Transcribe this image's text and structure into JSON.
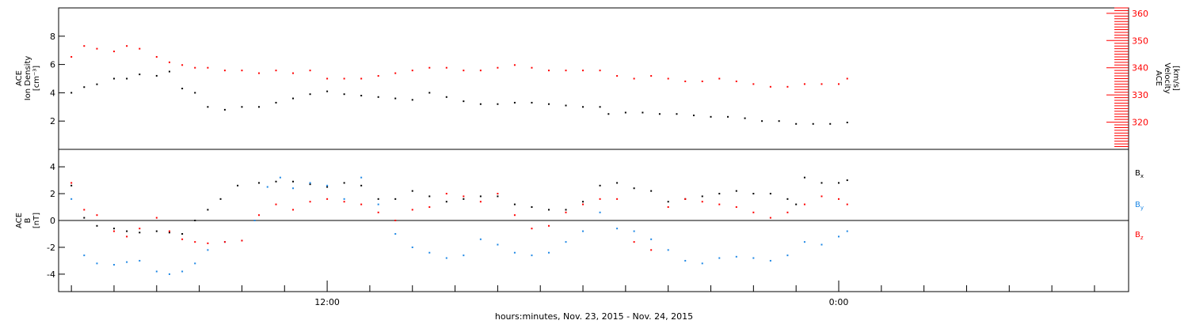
{
  "xlabel": "hours:minutes, Nov. 23, 2015 - Nov. 24, 2015",
  "chart_data": [
    {
      "type": "scatter",
      "panel": "top",
      "xlim": [
        5.7,
        30.8
      ],
      "x_tick_labels": [
        {
          "x": 12,
          "label": "12:00"
        },
        {
          "x": 24,
          "label": "0:00"
        }
      ],
      "left_axis": {
        "label_lines": [
          "ACE",
          "Ion Density",
          "[cm⁻³]"
        ],
        "ylim": [
          0,
          10
        ],
        "ticks": [
          2,
          4,
          6,
          8
        ],
        "color": "#000000"
      },
      "right_axis": {
        "label_lines": [
          "ACE",
          "Velocity",
          "[km/s]"
        ],
        "ylim": [
          310,
          362
        ],
        "ticks": [
          320,
          330,
          340,
          350,
          360
        ],
        "color": "#ff0000"
      },
      "series": [
        {
          "axis": "left",
          "color": "#000000",
          "points": [
            [
              6.0,
              4.0
            ],
            [
              6.3,
              4.4
            ],
            [
              6.6,
              4.6
            ],
            [
              7.0,
              5.0
            ],
            [
              7.3,
              5.0
            ],
            [
              7.6,
              5.3
            ],
            [
              8.0,
              5.2
            ],
            [
              8.3,
              5.5
            ],
            [
              8.6,
              4.3
            ],
            [
              8.9,
              4.0
            ],
            [
              9.2,
              3.0
            ],
            [
              9.6,
              2.8
            ],
            [
              10.0,
              3.0
            ],
            [
              10.4,
              3.0
            ],
            [
              10.8,
              3.3
            ],
            [
              11.2,
              3.6
            ],
            [
              11.6,
              3.9
            ],
            [
              12.0,
              4.1
            ],
            [
              12.4,
              3.9
            ],
            [
              12.8,
              3.8
            ],
            [
              13.2,
              3.7
            ],
            [
              13.6,
              3.6
            ],
            [
              14.0,
              3.5
            ],
            [
              14.4,
              4.0
            ],
            [
              14.8,
              3.7
            ],
            [
              15.2,
              3.4
            ],
            [
              15.6,
              3.2
            ],
            [
              16.0,
              3.2
            ],
            [
              16.4,
              3.3
            ],
            [
              16.8,
              3.3
            ],
            [
              17.2,
              3.2
            ],
            [
              17.6,
              3.1
            ],
            [
              18.0,
              3.0
            ],
            [
              18.4,
              3.0
            ],
            [
              18.6,
              2.5
            ],
            [
              19.0,
              2.6
            ],
            [
              19.4,
              2.6
            ],
            [
              19.8,
              2.5
            ],
            [
              20.2,
              2.5
            ],
            [
              20.6,
              2.4
            ],
            [
              21.0,
              2.3
            ],
            [
              21.4,
              2.3
            ],
            [
              21.8,
              2.2
            ],
            [
              22.2,
              2.0
            ],
            [
              22.6,
              2.0
            ],
            [
              23.0,
              1.8
            ],
            [
              23.4,
              1.8
            ],
            [
              23.8,
              1.8
            ],
            [
              24.2,
              1.9
            ]
          ]
        },
        {
          "axis": "right",
          "color": "#ff0000",
          "points": [
            [
              6.0,
              344
            ],
            [
              6.3,
              348
            ],
            [
              6.6,
              347
            ],
            [
              7.0,
              346
            ],
            [
              7.3,
              348
            ],
            [
              7.6,
              347
            ],
            [
              8.0,
              344
            ],
            [
              8.3,
              342
            ],
            [
              8.6,
              341
            ],
            [
              8.9,
              340
            ],
            [
              9.2,
              340
            ],
            [
              9.6,
              339
            ],
            [
              10.0,
              339
            ],
            [
              10.4,
              338
            ],
            [
              10.8,
              339
            ],
            [
              11.2,
              338
            ],
            [
              11.6,
              339
            ],
            [
              12.0,
              336
            ],
            [
              12.4,
              336
            ],
            [
              12.8,
              336
            ],
            [
              13.2,
              337
            ],
            [
              13.6,
              338
            ],
            [
              14.0,
              339
            ],
            [
              14.4,
              340
            ],
            [
              14.8,
              340
            ],
            [
              15.2,
              339
            ],
            [
              15.6,
              339
            ],
            [
              16.0,
              340
            ],
            [
              16.4,
              341
            ],
            [
              16.8,
              340
            ],
            [
              17.2,
              339
            ],
            [
              17.6,
              339
            ],
            [
              18.0,
              339
            ],
            [
              18.4,
              339
            ],
            [
              18.8,
              337
            ],
            [
              19.2,
              336
            ],
            [
              19.6,
              337
            ],
            [
              20.0,
              336
            ],
            [
              20.4,
              335
            ],
            [
              20.8,
              335
            ],
            [
              21.2,
              336
            ],
            [
              21.6,
              335
            ],
            [
              22.0,
              334
            ],
            [
              22.4,
              333
            ],
            [
              22.8,
              333
            ],
            [
              23.2,
              334
            ],
            [
              23.6,
              334
            ],
            [
              24.0,
              334
            ],
            [
              24.2,
              336
            ]
          ]
        }
      ]
    },
    {
      "type": "scatter",
      "panel": "bottom",
      "xlim": [
        5.7,
        30.8
      ],
      "x_tick_labels": [
        {
          "x": 12,
          "label": "12:00"
        },
        {
          "x": 24,
          "label": "0:00"
        }
      ],
      "left_axis": {
        "label_lines": [
          "ACE",
          "B",
          "[nT]"
        ],
        "ylim": [
          -5.3,
          5.3
        ],
        "ticks": [
          -4,
          -2,
          0,
          2,
          4
        ],
        "color": "#000000"
      },
      "series": [
        {
          "name": "Bx",
          "color": "#000000",
          "points": [
            [
              6.0,
              2.6
            ],
            [
              6.3,
              0.2
            ],
            [
              6.6,
              -0.4
            ],
            [
              7.0,
              -0.6
            ],
            [
              7.3,
              -0.8
            ],
            [
              7.6,
              -0.9
            ],
            [
              8.0,
              -0.8
            ],
            [
              8.3,
              -0.9
            ],
            [
              8.6,
              -1.0
            ],
            [
              8.9,
              0.0
            ],
            [
              9.2,
              0.8
            ],
            [
              9.5,
              1.6
            ],
            [
              9.9,
              2.6
            ],
            [
              10.4,
              2.8
            ],
            [
              10.8,
              2.9
            ],
            [
              11.2,
              2.9
            ],
            [
              11.6,
              2.7
            ],
            [
              12.0,
              2.5
            ],
            [
              12.4,
              2.8
            ],
            [
              12.8,
              2.6
            ],
            [
              13.2,
              1.6
            ],
            [
              13.6,
              1.6
            ],
            [
              14.0,
              2.2
            ],
            [
              14.4,
              1.8
            ],
            [
              14.8,
              1.4
            ],
            [
              15.2,
              1.6
            ],
            [
              15.6,
              1.8
            ],
            [
              16.0,
              1.8
            ],
            [
              16.4,
              1.2
            ],
            [
              16.8,
              1.0
            ],
            [
              17.2,
              0.8
            ],
            [
              17.6,
              0.8
            ],
            [
              18.0,
              1.4
            ],
            [
              18.4,
              2.6
            ],
            [
              18.8,
              2.8
            ],
            [
              19.2,
              2.4
            ],
            [
              19.6,
              2.2
            ],
            [
              20.0,
              1.4
            ],
            [
              20.4,
              1.6
            ],
            [
              20.8,
              1.8
            ],
            [
              21.2,
              2.0
            ],
            [
              21.6,
              2.2
            ],
            [
              22.0,
              2.0
            ],
            [
              22.4,
              2.0
            ],
            [
              22.8,
              1.6
            ],
            [
              23.0,
              1.2
            ],
            [
              23.2,
              3.2
            ],
            [
              23.6,
              2.8
            ],
            [
              24.0,
              2.8
            ],
            [
              24.2,
              3.0
            ]
          ]
        },
        {
          "name": "By",
          "color": "#1e88e5",
          "points": [
            [
              6.0,
              1.6
            ],
            [
              6.3,
              -2.6
            ],
            [
              6.6,
              -3.2
            ],
            [
              7.0,
              -3.3
            ],
            [
              7.3,
              -3.1
            ],
            [
              7.6,
              -3.0
            ],
            [
              8.0,
              -3.8
            ],
            [
              8.3,
              -4.0
            ],
            [
              8.6,
              -3.8
            ],
            [
              8.9,
              -3.2
            ],
            [
              9.2,
              -2.2
            ],
            [
              9.6,
              -1.6
            ],
            [
              10.0,
              -1.5
            ],
            [
              10.3,
              0.0
            ],
            [
              10.6,
              2.5
            ],
            [
              10.9,
              3.2
            ],
            [
              11.2,
              2.4
            ],
            [
              11.6,
              2.8
            ],
            [
              12.0,
              2.6
            ],
            [
              12.4,
              1.6
            ],
            [
              12.8,
              3.2
            ],
            [
              13.2,
              1.2
            ],
            [
              13.6,
              -1.0
            ],
            [
              14.0,
              -2.0
            ],
            [
              14.4,
              -2.4
            ],
            [
              14.8,
              -2.8
            ],
            [
              15.2,
              -2.6
            ],
            [
              15.6,
              -1.4
            ],
            [
              16.0,
              -1.8
            ],
            [
              16.4,
              -2.4
            ],
            [
              16.8,
              -2.6
            ],
            [
              17.2,
              -2.4
            ],
            [
              17.6,
              -1.6
            ],
            [
              18.0,
              -0.8
            ],
            [
              18.4,
              0.6
            ],
            [
              18.8,
              -0.6
            ],
            [
              19.2,
              -0.8
            ],
            [
              19.6,
              -1.4
            ],
            [
              20.0,
              -2.2
            ],
            [
              20.4,
              -3.0
            ],
            [
              20.8,
              -3.2
            ],
            [
              21.2,
              -2.8
            ],
            [
              21.6,
              -2.7
            ],
            [
              22.0,
              -2.8
            ],
            [
              22.4,
              -3.0
            ],
            [
              22.8,
              -2.6
            ],
            [
              23.2,
              -1.6
            ],
            [
              23.6,
              -1.8
            ],
            [
              24.0,
              -1.2
            ],
            [
              24.2,
              -0.8
            ]
          ]
        },
        {
          "name": "Bz",
          "color": "#ff0000",
          "points": [
            [
              6.0,
              2.8
            ],
            [
              6.3,
              0.8
            ],
            [
              6.6,
              0.4
            ],
            [
              7.0,
              -0.8
            ],
            [
              7.3,
              -1.2
            ],
            [
              7.6,
              -0.6
            ],
            [
              8.0,
              0.2
            ],
            [
              8.3,
              -0.8
            ],
            [
              8.6,
              -1.4
            ],
            [
              8.9,
              -1.6
            ],
            [
              9.2,
              -1.7
            ],
            [
              9.6,
              -1.6
            ],
            [
              10.0,
              -1.5
            ],
            [
              10.4,
              0.4
            ],
            [
              10.8,
              1.2
            ],
            [
              11.2,
              0.8
            ],
            [
              11.6,
              1.4
            ],
            [
              12.0,
              1.6
            ],
            [
              12.4,
              1.4
            ],
            [
              12.8,
              1.2
            ],
            [
              13.2,
              0.6
            ],
            [
              13.6,
              0.0
            ],
            [
              14.0,
              0.8
            ],
            [
              14.4,
              1.0
            ],
            [
              14.8,
              2.0
            ],
            [
              15.2,
              1.8
            ],
            [
              15.6,
              1.4
            ],
            [
              16.0,
              2.0
            ],
            [
              16.4,
              0.4
            ],
            [
              16.8,
              -0.6
            ],
            [
              17.2,
              -0.4
            ],
            [
              17.6,
              0.6
            ],
            [
              18.0,
              1.2
            ],
            [
              18.4,
              1.6
            ],
            [
              18.8,
              1.6
            ],
            [
              19.2,
              -1.6
            ],
            [
              19.6,
              -2.2
            ],
            [
              20.0,
              1.0
            ],
            [
              20.4,
              1.6
            ],
            [
              20.8,
              1.4
            ],
            [
              21.2,
              1.2
            ],
            [
              21.6,
              1.0
            ],
            [
              22.0,
              0.6
            ],
            [
              22.4,
              0.2
            ],
            [
              22.8,
              0.6
            ],
            [
              23.2,
              1.2
            ],
            [
              23.6,
              1.8
            ],
            [
              24.0,
              1.6
            ],
            [
              24.2,
              1.2
            ]
          ]
        }
      ],
      "legend": [
        {
          "label": "B",
          "sub": "x",
          "color": "#000000"
        },
        {
          "label": "B",
          "sub": "y",
          "color": "#1e88e5"
        },
        {
          "label": "B",
          "sub": "z",
          "color": "#ff0000"
        }
      ]
    }
  ]
}
